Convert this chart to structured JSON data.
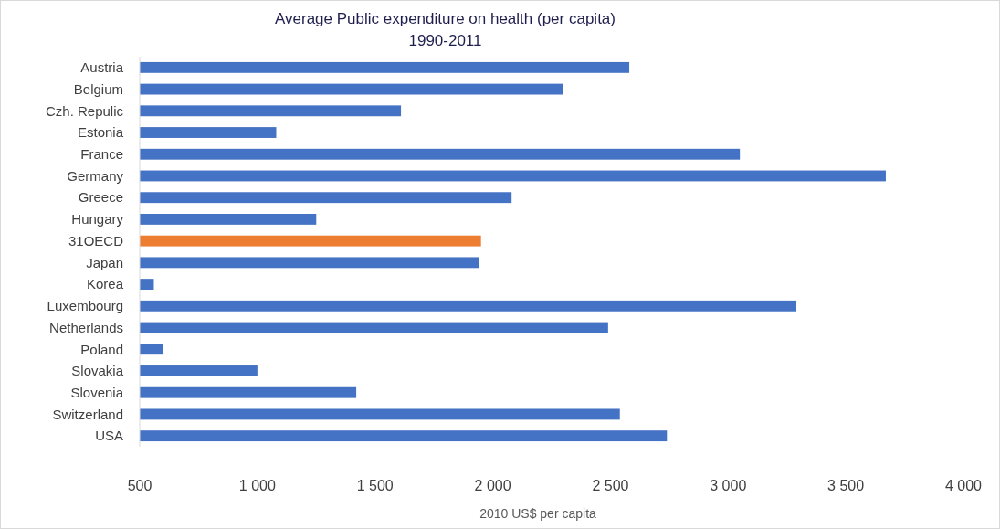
{
  "chart_data": {
    "type": "bar",
    "orientation": "horizontal",
    "title": "Average Public expenditure on health (per capita)",
    "subtitle": "1990-2011",
    "xlabel": "2010 US$ per capita",
    "categories": [
      "Austria",
      "Belgium",
      "Czh. Repulic",
      "Estonia",
      "France",
      "Germany",
      "Greece",
      "Hungary",
      "31OECD",
      "Japan",
      "Korea",
      "Luxembourg",
      "Netherlands",
      "Poland",
      "Slovakia",
      "Slovenia",
      "Switzerland",
      "USA"
    ],
    "values": [
      2580,
      2300,
      1610,
      1080,
      3050,
      3670,
      2080,
      1250,
      1950,
      1940,
      560,
      3290,
      2490,
      600,
      1000,
      1420,
      2540,
      2740
    ],
    "colors": [
      "#4472c4",
      "#4472c4",
      "#4472c4",
      "#4472c4",
      "#4472c4",
      "#4472c4",
      "#4472c4",
      "#4472c4",
      "#ed7d31",
      "#4472c4",
      "#4472c4",
      "#4472c4",
      "#4472c4",
      "#4472c4",
      "#4472c4",
      "#4472c4",
      "#4472c4",
      "#4472c4"
    ],
    "xlim": [
      500,
      4000
    ],
    "xticks": [
      {
        "value": 500,
        "label": "500"
      },
      {
        "value": 1000,
        "label": "1 000"
      },
      {
        "value": 1500,
        "label": "1 500"
      },
      {
        "value": 2000,
        "label": "2 000"
      },
      {
        "value": 2500,
        "label": "2 500"
      },
      {
        "value": 3000,
        "label": "3 000"
      },
      {
        "value": 3500,
        "label": "3 500"
      },
      {
        "value": 4000,
        "label": "4 000"
      }
    ],
    "grid": false
  }
}
